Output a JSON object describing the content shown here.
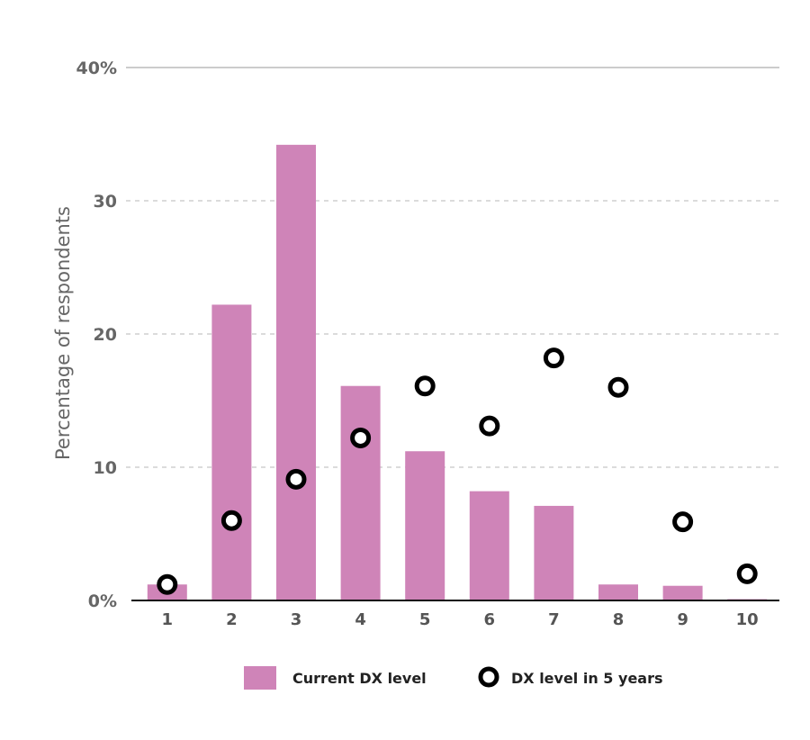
{
  "chart_data": {
    "type": "bar",
    "ylabel": "Percentage of respondents",
    "xlabel": "",
    "categories": [
      "1",
      "2",
      "3",
      "4",
      "5",
      "6",
      "7",
      "8",
      "9",
      "10"
    ],
    "y_ticks": [
      {
        "value": 0,
        "label": "0%"
      },
      {
        "value": 10,
        "label": "10"
      },
      {
        "value": 20,
        "label": "20"
      },
      {
        "value": 30,
        "label": "30"
      },
      {
        "value": 40,
        "label": "40%"
      }
    ],
    "ylim": [
      0,
      40
    ],
    "grid": true,
    "legend_position": "bottom",
    "series": [
      {
        "name": "Current DX level",
        "mark": "bar",
        "color": "#cf84b8",
        "values": [
          1.2,
          22.2,
          34.2,
          16.1,
          11.2,
          8.2,
          7.1,
          1.2,
          1.1,
          0.1
        ]
      },
      {
        "name": "DX level in 5 years",
        "mark": "circle",
        "color": "#000000",
        "values": [
          1.2,
          6.0,
          9.1,
          12.2,
          16.1,
          13.1,
          18.2,
          16.0,
          5.9,
          2.0
        ]
      }
    ]
  }
}
